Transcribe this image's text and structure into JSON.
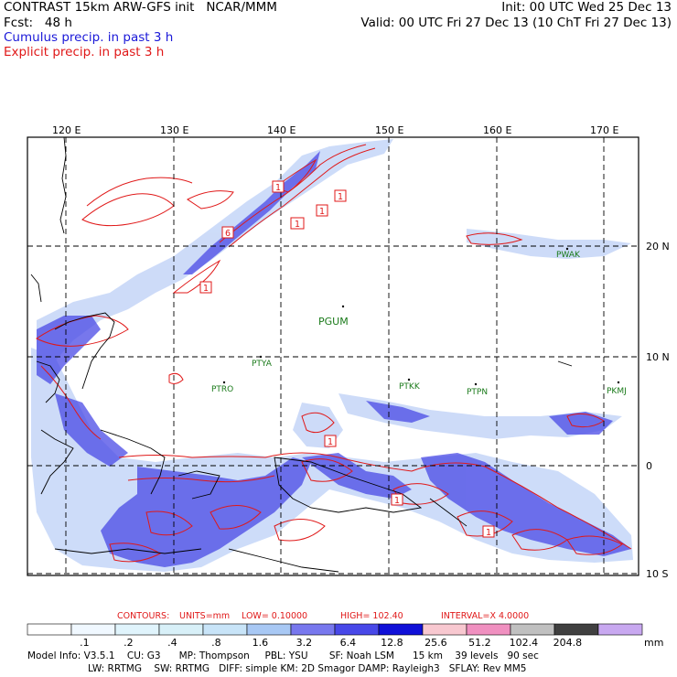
{
  "header": {
    "title_left": "CONTRAST 15km ARW-GFS init   NCAR/MMM",
    "fcst": "Fcst:   48 h",
    "cumulus": "Cumulus precip. in past 3 h",
    "explicit": "Explicit precip. in past 3 h",
    "init": "Init: 00 UTC Wed 25 Dec 13",
    "valid": "Valid: 00 UTC Fri 27 Dec 13 (10 ChT Fri 27 Dec 13)"
  },
  "map": {
    "lon_labels": [
      "120 E",
      "130 E",
      "140 E",
      "150 E",
      "160 E",
      "170 E"
    ],
    "lat_labels": [
      "20 N",
      "10 N",
      "0",
      "10 S"
    ],
    "stations": [
      {
        "id": "PGUM"
      },
      {
        "id": "PTYA"
      },
      {
        "id": "PTRO"
      },
      {
        "id": "PTKK"
      },
      {
        "id": "PTPN"
      },
      {
        "id": "PKMJ"
      },
      {
        "id": "PWAK"
      }
    ],
    "contour_labels": [
      "1",
      "1",
      "1",
      "1",
      "6",
      "1",
      "1",
      "1",
      "1"
    ]
  },
  "contours_line": {
    "label": "CONTOURS:",
    "units": "UNITS=mm",
    "low": "LOW=  0.10000",
    "high": "HIGH=  102.40",
    "interval": "INTERVAL=X  4.0000"
  },
  "colorbar": {
    "ticks": [
      ".1",
      ".2",
      ".4",
      ".8",
      "1.6",
      "3.2",
      "6.4",
      "12.8",
      "25.6",
      "51.2",
      "102.4",
      "204.8"
    ],
    "unit": "mm",
    "colors": [
      "#ffffff",
      "#f0f8ff",
      "#e0f4fc",
      "#d8f0f8",
      "#c8e4f8",
      "#a8c8f4",
      "#7878ee",
      "#4848e8",
      "#1010d8",
      "#f8c8d0",
      "#f090c0",
      "#c0c0c0",
      "#404040",
      "#c8a8f0"
    ]
  },
  "footer": {
    "line1": "Model Info: V3.5.1    CU: G3      MP: Thompson     PBL: YSU       SF: Noah LSM      15 km    39 levels   90 sec",
    "line2": "LW: RRTMG    SW: RRTMG   DIFF: simple KM: 2D Smagor DAMP: Rayleigh3   SFLAY: Rev MM5"
  }
}
